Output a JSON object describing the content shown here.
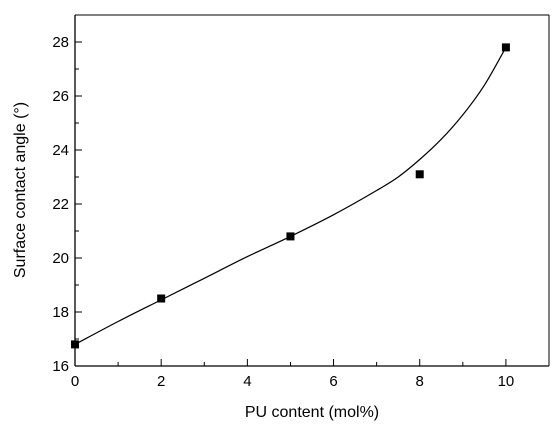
{
  "chart_data": {
    "type": "scatter",
    "xlabel": "PU content (mol%)",
    "ylabel": "Surface contact angle (°)",
    "xlim": [
      0,
      11
    ],
    "ylim": [
      16,
      29
    ],
    "xticks": [
      0,
      2,
      4,
      6,
      8,
      10
    ],
    "yticks": [
      16,
      18,
      20,
      22,
      24,
      26,
      28
    ],
    "series": [
      {
        "marker": "square",
        "x": [
          0,
          2,
          5,
          8,
          10
        ],
        "y": [
          16.8,
          18.5,
          20.8,
          23.1,
          27.8
        ]
      }
    ],
    "fit_curve": {
      "x": [
        0,
        1,
        2,
        3,
        4,
        5,
        6,
        7,
        7.5,
        8,
        8.5,
        9,
        9.5,
        10
      ],
      "y": [
        16.8,
        17.65,
        18.45,
        19.25,
        20.05,
        20.8,
        21.6,
        22.5,
        23.0,
        23.65,
        24.4,
        25.3,
        26.4,
        27.8
      ]
    },
    "grid": false,
    "legend": "none"
  }
}
